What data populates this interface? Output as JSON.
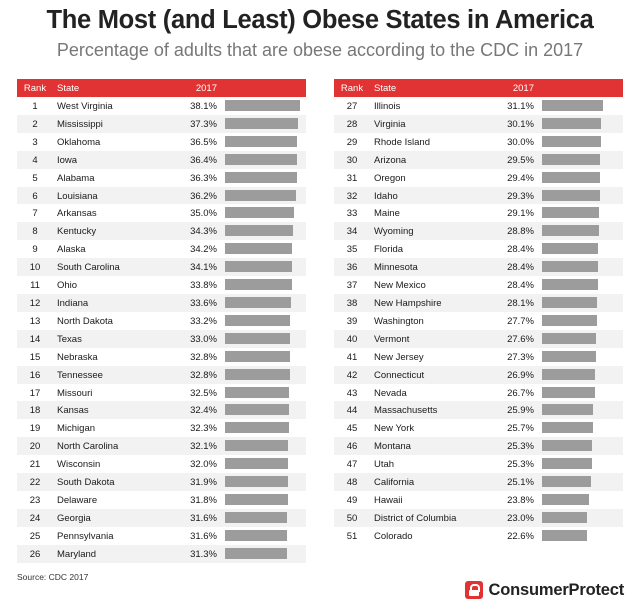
{
  "header": {
    "title": "The Most (and Least) Obese States in America",
    "subtitle": "Percentage of adults that are obese according to the CDC in 2017"
  },
  "columns": {
    "rank": "Rank",
    "state": "State",
    "value": "2017"
  },
  "colors": {
    "header": "#e13333",
    "bar": "#9c9c9c",
    "stripe": "#f2f2f2"
  },
  "footer": {
    "source": "Source: CDC 2017",
    "brand": "ConsumerProtect",
    "brand_icon": "lock-icon"
  },
  "chart_data": {
    "type": "table",
    "title": "The Most (and Least) Obese States in America",
    "subtitle": "Percentage of adults that are obese according to the CDC in 2017",
    "columns": [
      "Rank",
      "State",
      "2017"
    ],
    "bar_max": 38.1,
    "rows": [
      {
        "rank": "1",
        "state": "West Virginia",
        "value": 38.1,
        "label": "38.1%"
      },
      {
        "rank": "2",
        "state": "Mississippi",
        "value": 37.3,
        "label": "37.3%"
      },
      {
        "rank": "3",
        "state": "Oklahoma",
        "value": 36.5,
        "label": "36.5%"
      },
      {
        "rank": "4",
        "state": "Iowa",
        "value": 36.4,
        "label": "36.4%"
      },
      {
        "rank": "5",
        "state": "Alabama",
        "value": 36.3,
        "label": "36.3%"
      },
      {
        "rank": "6",
        "state": "Louisiana",
        "value": 36.2,
        "label": "36.2%"
      },
      {
        "rank": "7",
        "state": "Arkansas",
        "value": 35.0,
        "label": "35.0%"
      },
      {
        "rank": "8",
        "state": "Kentucky",
        "value": 34.3,
        "label": "34.3%"
      },
      {
        "rank": "9",
        "state": "Alaska",
        "value": 34.2,
        "label": "34.2%"
      },
      {
        "rank": "10",
        "state": "South Carolina",
        "value": 34.1,
        "label": "34.1%"
      },
      {
        "rank": "11",
        "state": "Ohio",
        "value": 33.8,
        "label": "33.8%"
      },
      {
        "rank": "12",
        "state": "Indiana",
        "value": 33.6,
        "label": "33.6%"
      },
      {
        "rank": "13",
        "state": "North Dakota",
        "value": 33.2,
        "label": "33.2%"
      },
      {
        "rank": "14",
        "state": "Texas",
        "value": 33.0,
        "label": "33.0%"
      },
      {
        "rank": "15",
        "state": "Nebraska",
        "value": 32.8,
        "label": "32.8%"
      },
      {
        "rank": "16",
        "state": "Tennessee",
        "value": 32.8,
        "label": "32.8%"
      },
      {
        "rank": "17",
        "state": "Missouri",
        "value": 32.5,
        "label": "32.5%"
      },
      {
        "rank": "18",
        "state": "Kansas",
        "value": 32.4,
        "label": "32.4%"
      },
      {
        "rank": "19",
        "state": "Michigan",
        "value": 32.3,
        "label": "32.3%"
      },
      {
        "rank": "20",
        "state": "North Carolina",
        "value": 32.1,
        "label": "32.1%"
      },
      {
        "rank": "21",
        "state": "Wisconsin",
        "value": 32.0,
        "label": "32.0%"
      },
      {
        "rank": "22",
        "state": "South Dakota",
        "value": 31.9,
        "label": "31.9%"
      },
      {
        "rank": "23",
        "state": "Delaware",
        "value": 31.8,
        "label": "31.8%"
      },
      {
        "rank": "24",
        "state": "Georgia",
        "value": 31.6,
        "label": "31.6%"
      },
      {
        "rank": "25",
        "state": "Pennsylvania",
        "value": 31.6,
        "label": "31.6%"
      },
      {
        "rank": "26",
        "state": "Maryland",
        "value": 31.3,
        "label": "31.3%"
      },
      {
        "rank": "27",
        "state": "Illinois",
        "value": 31.1,
        "label": "31.1%"
      },
      {
        "rank": "28",
        "state": "Virginia",
        "value": 30.1,
        "label": "30.1%"
      },
      {
        "rank": "29",
        "state": "Rhode Island",
        "value": 30.0,
        "label": "30.0%"
      },
      {
        "rank": "30",
        "state": "Arizona",
        "value": 29.5,
        "label": "29.5%"
      },
      {
        "rank": "31",
        "state": "Oregon",
        "value": 29.4,
        "label": "29.4%"
      },
      {
        "rank": "32",
        "state": "Idaho",
        "value": 29.3,
        "label": "29.3%"
      },
      {
        "rank": "33",
        "state": "Maine",
        "value": 29.1,
        "label": "29.1%"
      },
      {
        "rank": "34",
        "state": "Wyoming",
        "value": 28.8,
        "label": "28.8%"
      },
      {
        "rank": "35",
        "state": "Florida",
        "value": 28.4,
        "label": "28.4%"
      },
      {
        "rank": "36",
        "state": "Minnesota",
        "value": 28.4,
        "label": "28.4%"
      },
      {
        "rank": "37",
        "state": "New Mexico",
        "value": 28.4,
        "label": "28.4%"
      },
      {
        "rank": "38",
        "state": "New Hampshire",
        "value": 28.1,
        "label": "28.1%"
      },
      {
        "rank": "39",
        "state": "Washington",
        "value": 27.7,
        "label": "27.7%"
      },
      {
        "rank": "40",
        "state": "Vermont",
        "value": 27.6,
        "label": "27.6%"
      },
      {
        "rank": "41",
        "state": "New Jersey",
        "value": 27.3,
        "label": "27.3%"
      },
      {
        "rank": "42",
        "state": "Connecticut",
        "value": 26.9,
        "label": "26.9%"
      },
      {
        "rank": "43",
        "state": "Nevada",
        "value": 26.7,
        "label": "26.7%"
      },
      {
        "rank": "44",
        "state": "Massachusetts",
        "value": 25.9,
        "label": "25.9%"
      },
      {
        "rank": "45",
        "state": "New York",
        "value": 25.7,
        "label": "25.7%"
      },
      {
        "rank": "46",
        "state": "Montana",
        "value": 25.3,
        "label": "25.3%"
      },
      {
        "rank": "47",
        "state": "Utah",
        "value": 25.3,
        "label": "25.3%"
      },
      {
        "rank": "48",
        "state": "California",
        "value": 25.1,
        "label": "25.1%"
      },
      {
        "rank": "49",
        "state": "Hawaii",
        "value": 23.8,
        "label": "23.8%"
      },
      {
        "rank": "50",
        "state": "District of Columbia",
        "value": 23.0,
        "label": "23.0%"
      },
      {
        "rank": "51",
        "state": "Colorado",
        "value": 22.6,
        "label": "22.6%"
      }
    ]
  }
}
